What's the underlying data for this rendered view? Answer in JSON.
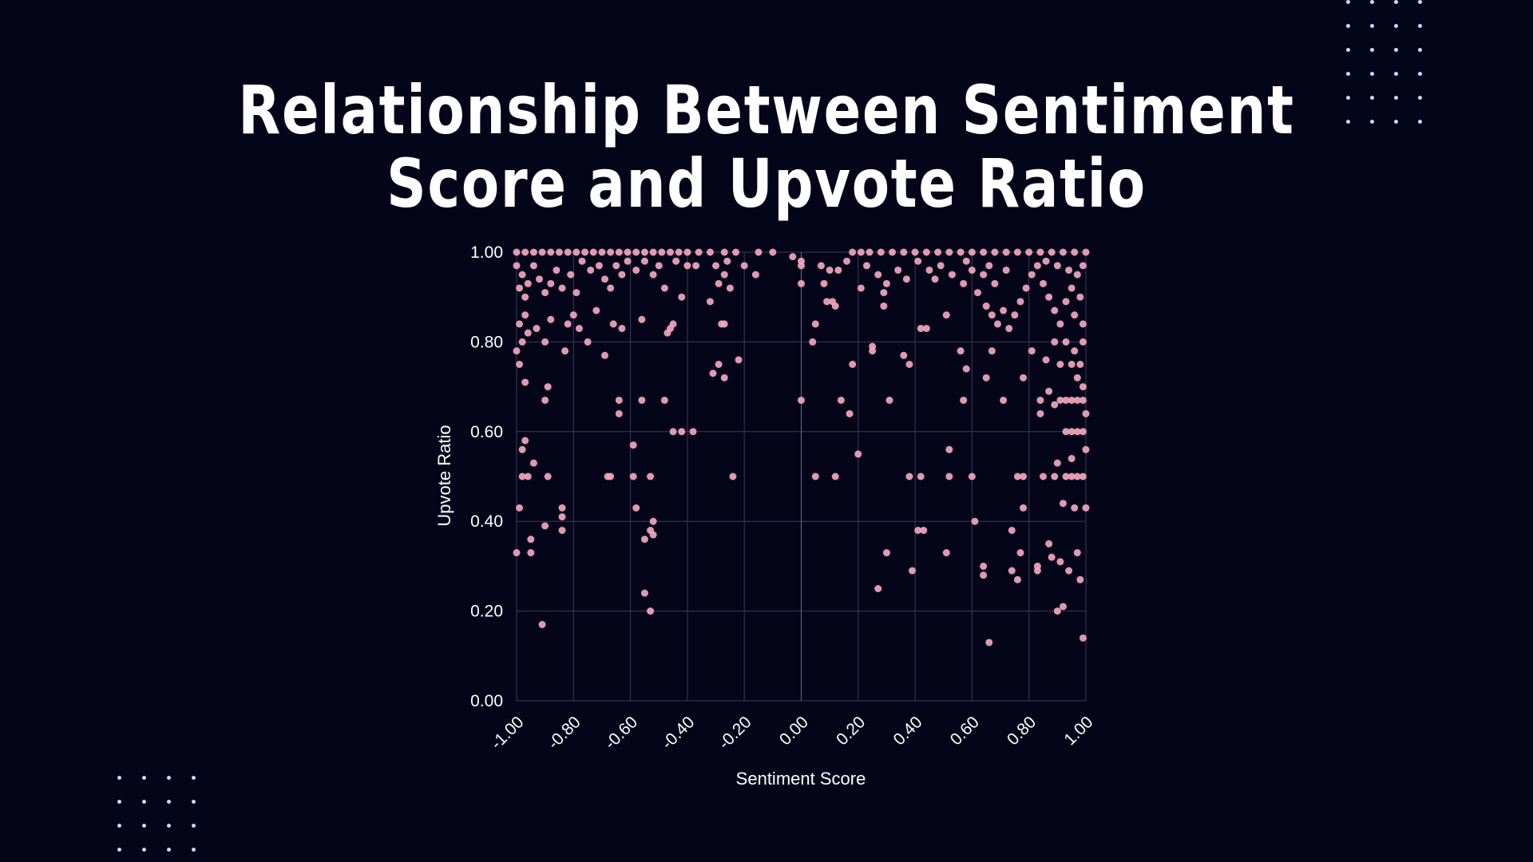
{
  "colors": {
    "background": "#05051a",
    "point": "#f2a7bd",
    "grid": "#3a3a55",
    "text": "#ffffff",
    "decor_dots": "#cfd6ff"
  },
  "chart_data": {
    "type": "scatter",
    "title": "Relationship Between Sentiment Score and Upvote Ratio",
    "title_lines": [
      "Relationship Between Sentiment",
      "Score and Upvote Ratio"
    ],
    "xlabel": "Sentiment Score",
    "ylabel": "Upvote Ratio",
    "xlim": [
      -1.0,
      1.0
    ],
    "ylim": [
      0.0,
      1.0
    ],
    "grid": true,
    "legend": "none",
    "x_ticks": [
      -1.0,
      -0.8,
      -0.6,
      -0.4,
      -0.2,
      0.0,
      0.2,
      0.4,
      0.6,
      0.8,
      1.0
    ],
    "x_tick_labels": [
      "-1.00",
      "-0.80",
      "-0.60",
      "-0.40",
      "-0.20",
      "0.00",
      "0.20",
      "0.40",
      "0.60",
      "0.80",
      "1.00"
    ],
    "y_ticks": [
      0.0,
      0.2,
      0.4,
      0.6,
      0.8,
      1.0
    ],
    "y_tick_labels": [
      "0.00",
      "0.20",
      "0.40",
      "0.60",
      "0.80",
      "1.00"
    ],
    "points": [
      {
        "x": -1.0,
        "y": 0.33
      },
      {
        "x": -0.99,
        "y": 0.43
      },
      {
        "x": -0.98,
        "y": 0.56
      },
      {
        "x": -0.97,
        "y": 0.58
      },
      {
        "x": -0.98,
        "y": 0.5
      },
      {
        "x": -0.96,
        "y": 0.5
      },
      {
        "x": -0.95,
        "y": 0.36
      },
      {
        "x": -0.95,
        "y": 0.33
      },
      {
        "x": -0.94,
        "y": 0.53
      },
      {
        "x": -0.91,
        "y": 0.17
      },
      {
        "x": -0.9,
        "y": 0.39
      },
      {
        "x": -0.89,
        "y": 0.5
      },
      {
        "x": -0.9,
        "y": 0.67
      },
      {
        "x": -0.89,
        "y": 0.7
      },
      {
        "x": -0.84,
        "y": 0.43
      },
      {
        "x": -0.84,
        "y": 0.41
      },
      {
        "x": -0.84,
        "y": 0.38
      },
      {
        "x": -0.97,
        "y": 0.71
      },
      {
        "x": -0.99,
        "y": 0.75
      },
      {
        "x": -1.0,
        "y": 0.78
      },
      {
        "x": -0.98,
        "y": 0.8
      },
      {
        "x": -0.96,
        "y": 0.82
      },
      {
        "x": -0.99,
        "y": 0.84
      },
      {
        "x": -0.97,
        "y": 0.86
      },
      {
        "x": -0.93,
        "y": 0.83
      },
      {
        "x": -0.9,
        "y": 0.8
      },
      {
        "x": -0.88,
        "y": 0.85
      },
      {
        "x": -0.83,
        "y": 0.78
      },
      {
        "x": -0.82,
        "y": 0.84
      },
      {
        "x": -0.8,
        "y": 0.86
      },
      {
        "x": -0.78,
        "y": 0.83
      },
      {
        "x": -0.75,
        "y": 0.8
      },
      {
        "x": -0.72,
        "y": 0.87
      },
      {
        "x": -0.69,
        "y": 0.77
      },
      {
        "x": -0.66,
        "y": 0.84
      },
      {
        "x": -0.63,
        "y": 0.83
      },
      {
        "x": -0.64,
        "y": 0.67
      },
      {
        "x": -0.64,
        "y": 0.64
      },
      {
        "x": -0.59,
        "y": 0.57
      },
      {
        "x": -0.59,
        "y": 0.5
      },
      {
        "x": -0.58,
        "y": 0.43
      },
      {
        "x": -0.56,
        "y": 0.67
      },
      {
        "x": -0.55,
        "y": 0.36
      },
      {
        "x": -0.55,
        "y": 0.24
      },
      {
        "x": -0.53,
        "y": 0.2
      },
      {
        "x": -0.53,
        "y": 0.5
      },
      {
        "x": -0.52,
        "y": 0.4
      },
      {
        "x": -0.52,
        "y": 0.37
      },
      {
        "x": -0.53,
        "y": 0.38
      },
      {
        "x": -0.48,
        "y": 0.67
      },
      {
        "x": -0.45,
        "y": 0.6
      },
      {
        "x": -0.42,
        "y": 0.6
      },
      {
        "x": -0.38,
        "y": 0.6
      },
      {
        "x": -0.47,
        "y": 0.82
      },
      {
        "x": -0.46,
        "y": 0.83
      },
      {
        "x": -0.45,
        "y": 0.84
      },
      {
        "x": -0.42,
        "y": 0.9
      },
      {
        "x": -0.56,
        "y": 0.85
      },
      {
        "x": -0.68,
        "y": 0.5
      },
      {
        "x": -0.67,
        "y": 0.5
      },
      {
        "x": -0.31,
        "y": 0.73
      },
      {
        "x": -0.29,
        "y": 0.75
      },
      {
        "x": -0.27,
        "y": 0.72
      },
      {
        "x": -0.22,
        "y": 0.76
      },
      {
        "x": -0.24,
        "y": 0.5
      },
      {
        "x": -0.28,
        "y": 0.84
      },
      {
        "x": -0.27,
        "y": 0.84
      },
      {
        "x": -0.32,
        "y": 0.89
      },
      {
        "x": -0.29,
        "y": 0.93
      },
      {
        "x": -0.27,
        "y": 0.95
      },
      {
        "x": -0.25,
        "y": 0.92
      },
      {
        "x": -0.2,
        "y": 0.97
      },
      {
        "x": -0.16,
        "y": 0.95
      },
      {
        "x": -0.1,
        "y": 1.0
      },
      {
        "x": -0.03,
        "y": 0.99
      },
      {
        "x": 0.0,
        "y": 0.93
      },
      {
        "x": 0.0,
        "y": 0.97
      },
      {
        "x": 0.0,
        "y": 0.98
      },
      {
        "x": 0.0,
        "y": 0.67
      },
      {
        "x": 0.04,
        "y": 0.8
      },
      {
        "x": 0.05,
        "y": 0.84
      },
      {
        "x": 0.05,
        "y": 0.5
      },
      {
        "x": 0.08,
        "y": 0.93
      },
      {
        "x": 0.09,
        "y": 0.89
      },
      {
        "x": 0.11,
        "y": 0.89
      },
      {
        "x": 0.12,
        "y": 0.88
      },
      {
        "x": 0.12,
        "y": 0.5
      },
      {
        "x": 0.14,
        "y": 0.67
      },
      {
        "x": 0.17,
        "y": 0.64
      },
      {
        "x": 0.18,
        "y": 0.75
      },
      {
        "x": 0.2,
        "y": 0.55
      },
      {
        "x": 0.21,
        "y": 0.92
      },
      {
        "x": 0.25,
        "y": 0.79
      },
      {
        "x": 0.25,
        "y": 0.78
      },
      {
        "x": 0.27,
        "y": 0.25
      },
      {
        "x": 0.29,
        "y": 0.91
      },
      {
        "x": 0.29,
        "y": 0.88
      },
      {
        "x": 0.3,
        "y": 0.33
      },
      {
        "x": 0.31,
        "y": 0.67
      },
      {
        "x": 0.36,
        "y": 0.77
      },
      {
        "x": 0.38,
        "y": 0.75
      },
      {
        "x": 0.38,
        "y": 0.5
      },
      {
        "x": 0.39,
        "y": 0.29
      },
      {
        "x": 0.41,
        "y": 0.38
      },
      {
        "x": 0.42,
        "y": 0.5
      },
      {
        "x": 0.43,
        "y": 0.38
      },
      {
        "x": 0.42,
        "y": 0.83
      },
      {
        "x": 0.44,
        "y": 0.83
      },
      {
        "x": 0.47,
        "y": 0.94
      },
      {
        "x": 0.51,
        "y": 0.33
      },
      {
        "x": 0.51,
        "y": 0.86
      },
      {
        "x": 0.52,
        "y": 0.5
      },
      {
        "x": 0.52,
        "y": 0.56
      },
      {
        "x": 0.56,
        "y": 0.78
      },
      {
        "x": 0.57,
        "y": 0.67
      },
      {
        "x": 0.58,
        "y": 0.74
      },
      {
        "x": 0.6,
        "y": 0.5
      },
      {
        "x": 0.61,
        "y": 0.4
      },
      {
        "x": 0.64,
        "y": 0.3
      },
      {
        "x": 0.64,
        "y": 0.28
      },
      {
        "x": 0.66,
        "y": 0.13
      },
      {
        "x": 0.65,
        "y": 0.72
      },
      {
        "x": 0.67,
        "y": 0.78
      },
      {
        "x": 0.71,
        "y": 0.67
      },
      {
        "x": 0.74,
        "y": 0.38
      },
      {
        "x": 0.74,
        "y": 0.29
      },
      {
        "x": 0.76,
        "y": 0.27
      },
      {
        "x": 0.77,
        "y": 0.33
      },
      {
        "x": 0.76,
        "y": 0.5
      },
      {
        "x": 0.78,
        "y": 0.5
      },
      {
        "x": 0.78,
        "y": 0.43
      },
      {
        "x": 0.78,
        "y": 0.72
      },
      {
        "x": 0.81,
        "y": 0.78
      },
      {
        "x": 0.83,
        "y": 0.3
      },
      {
        "x": 0.83,
        "y": 0.29
      },
      {
        "x": 0.85,
        "y": 0.5
      },
      {
        "x": 0.84,
        "y": 0.67
      },
      {
        "x": 0.84,
        "y": 0.64
      },
      {
        "x": 0.87,
        "y": 0.35
      },
      {
        "x": 0.88,
        "y": 0.32
      },
      {
        "x": 0.9,
        "y": 0.2
      },
      {
        "x": 0.91,
        "y": 0.31
      },
      {
        "x": 0.92,
        "y": 0.21
      },
      {
        "x": 0.92,
        "y": 0.44
      },
      {
        "x": 0.93,
        "y": 0.5
      },
      {
        "x": 0.94,
        "y": 0.29
      },
      {
        "x": 0.95,
        "y": 0.54
      },
      {
        "x": 0.96,
        "y": 0.43
      },
      {
        "x": 0.97,
        "y": 0.33
      },
      {
        "x": 0.98,
        "y": 0.27
      },
      {
        "x": 0.99,
        "y": 0.14
      },
      {
        "x": 1.0,
        "y": 0.43
      },
      {
        "x": 1.0,
        "y": 0.56
      },
      {
        "x": 1.0,
        "y": 0.64
      },
      {
        "x": 0.9,
        "y": 0.53
      },
      {
        "x": 0.89,
        "y": 0.5
      },
      {
        "x": 0.93,
        "y": 0.6
      },
      {
        "x": 0.95,
        "y": 0.6
      },
      {
        "x": 0.97,
        "y": 0.6
      },
      {
        "x": 0.99,
        "y": 0.6
      },
      {
        "x": 0.91,
        "y": 0.67
      },
      {
        "x": 0.93,
        "y": 0.67
      },
      {
        "x": 0.95,
        "y": 0.67
      },
      {
        "x": 0.97,
        "y": 0.67
      },
      {
        "x": 0.99,
        "y": 0.67
      },
      {
        "x": 0.97,
        "y": 0.5
      },
      {
        "x": 0.99,
        "y": 0.5
      },
      {
        "x": 0.95,
        "y": 0.5
      },
      {
        "x": 0.91,
        "y": 0.75
      },
      {
        "x": 0.95,
        "y": 0.75
      },
      {
        "x": 0.98,
        "y": 0.75
      },
      {
        "x": 0.97,
        "y": 0.72
      },
      {
        "x": 0.99,
        "y": 0.7
      },
      {
        "x": 0.93,
        "y": 0.8
      },
      {
        "x": 0.96,
        "y": 0.78
      },
      {
        "x": 0.99,
        "y": 0.8
      },
      {
        "x": 0.89,
        "y": 0.8
      },
      {
        "x": 0.86,
        "y": 0.76
      },
      {
        "x": 0.87,
        "y": 0.69
      },
      {
        "x": 0.89,
        "y": 0.66
      },
      {
        "x": -1.0,
        "y": 1.0
      },
      {
        "x": -0.97,
        "y": 1.0
      },
      {
        "x": -0.94,
        "y": 1.0
      },
      {
        "x": -0.91,
        "y": 1.0
      },
      {
        "x": -0.88,
        "y": 1.0
      },
      {
        "x": -0.85,
        "y": 1.0
      },
      {
        "x": -0.82,
        "y": 1.0
      },
      {
        "x": -0.79,
        "y": 1.0
      },
      {
        "x": -0.76,
        "y": 1.0
      },
      {
        "x": -0.73,
        "y": 1.0
      },
      {
        "x": -0.7,
        "y": 1.0
      },
      {
        "x": -0.67,
        "y": 1.0
      },
      {
        "x": -0.64,
        "y": 1.0
      },
      {
        "x": -0.61,
        "y": 1.0
      },
      {
        "x": -0.58,
        "y": 1.0
      },
      {
        "x": -0.55,
        "y": 1.0
      },
      {
        "x": -0.52,
        "y": 1.0
      },
      {
        "x": -0.49,
        "y": 1.0
      },
      {
        "x": -0.46,
        "y": 1.0
      },
      {
        "x": -0.43,
        "y": 1.0
      },
      {
        "x": -0.4,
        "y": 1.0
      },
      {
        "x": -0.36,
        "y": 1.0
      },
      {
        "x": -0.32,
        "y": 1.0
      },
      {
        "x": -0.27,
        "y": 1.0
      },
      {
        "x": -0.23,
        "y": 1.0
      },
      {
        "x": -0.15,
        "y": 1.0
      },
      {
        "x": 0.18,
        "y": 1.0
      },
      {
        "x": 0.21,
        "y": 1.0
      },
      {
        "x": 0.24,
        "y": 1.0
      },
      {
        "x": 0.28,
        "y": 1.0
      },
      {
        "x": 0.32,
        "y": 1.0
      },
      {
        "x": 0.36,
        "y": 1.0
      },
      {
        "x": 0.4,
        "y": 1.0
      },
      {
        "x": 0.44,
        "y": 1.0
      },
      {
        "x": 0.48,
        "y": 1.0
      },
      {
        "x": 0.52,
        "y": 1.0
      },
      {
        "x": 0.56,
        "y": 1.0
      },
      {
        "x": 0.6,
        "y": 1.0
      },
      {
        "x": 0.64,
        "y": 1.0
      },
      {
        "x": 0.68,
        "y": 1.0
      },
      {
        "x": 0.72,
        "y": 1.0
      },
      {
        "x": 0.76,
        "y": 1.0
      },
      {
        "x": 0.8,
        "y": 1.0
      },
      {
        "x": 0.84,
        "y": 1.0
      },
      {
        "x": 0.88,
        "y": 1.0
      },
      {
        "x": 0.92,
        "y": 1.0
      },
      {
        "x": 0.96,
        "y": 1.0
      },
      {
        "x": 1.0,
        "y": 1.0
      },
      {
        "x": -1.0,
        "y": 0.97
      },
      {
        "x": -0.98,
        "y": 0.95
      },
      {
        "x": -0.96,
        "y": 0.93
      },
      {
        "x": -0.99,
        "y": 0.92
      },
      {
        "x": -0.97,
        "y": 0.9
      },
      {
        "x": -0.94,
        "y": 0.97
      },
      {
        "x": -0.92,
        "y": 0.94
      },
      {
        "x": -0.9,
        "y": 0.91
      },
      {
        "x": -0.88,
        "y": 0.93
      },
      {
        "x": -0.86,
        "y": 0.96
      },
      {
        "x": -0.84,
        "y": 0.92
      },
      {
        "x": -0.81,
        "y": 0.95
      },
      {
        "x": -0.79,
        "y": 0.91
      },
      {
        "x": -0.77,
        "y": 0.98
      },
      {
        "x": -0.74,
        "y": 0.96
      },
      {
        "x": -0.71,
        "y": 0.97
      },
      {
        "x": -0.69,
        "y": 0.94
      },
      {
        "x": -0.67,
        "y": 0.92
      },
      {
        "x": -0.65,
        "y": 0.97
      },
      {
        "x": -0.63,
        "y": 0.95
      },
      {
        "x": -0.61,
        "y": 0.98
      },
      {
        "x": -0.58,
        "y": 0.96
      },
      {
        "x": -0.55,
        "y": 0.98
      },
      {
        "x": -0.52,
        "y": 0.95
      },
      {
        "x": -0.5,
        "y": 0.97
      },
      {
        "x": -0.48,
        "y": 0.92
      },
      {
        "x": -0.44,
        "y": 0.98
      },
      {
        "x": -0.4,
        "y": 0.97
      },
      {
        "x": -0.37,
        "y": 0.97
      },
      {
        "x": -0.3,
        "y": 0.97
      },
      {
        "x": -0.26,
        "y": 0.98
      },
      {
        "x": 0.07,
        "y": 0.97
      },
      {
        "x": 0.1,
        "y": 0.96
      },
      {
        "x": 0.13,
        "y": 0.96
      },
      {
        "x": 0.16,
        "y": 0.98
      },
      {
        "x": 0.23,
        "y": 0.97
      },
      {
        "x": 0.27,
        "y": 0.95
      },
      {
        "x": 0.3,
        "y": 0.93
      },
      {
        "x": 0.34,
        "y": 0.96
      },
      {
        "x": 0.37,
        "y": 0.94
      },
      {
        "x": 0.41,
        "y": 0.98
      },
      {
        "x": 0.45,
        "y": 0.96
      },
      {
        "x": 0.49,
        "y": 0.97
      },
      {
        "x": 0.53,
        "y": 0.95
      },
      {
        "x": 0.57,
        "y": 0.93
      },
      {
        "x": 0.6,
        "y": 0.96
      },
      {
        "x": 0.62,
        "y": 0.91
      },
      {
        "x": 0.65,
        "y": 0.88
      },
      {
        "x": 0.67,
        "y": 0.86
      },
      {
        "x": 0.69,
        "y": 0.84
      },
      {
        "x": 0.71,
        "y": 0.87
      },
      {
        "x": 0.73,
        "y": 0.83
      },
      {
        "x": 0.75,
        "y": 0.86
      },
      {
        "x": 0.77,
        "y": 0.89
      },
      {
        "x": 0.79,
        "y": 0.92
      },
      {
        "x": 0.81,
        "y": 0.95
      },
      {
        "x": 0.83,
        "y": 0.97
      },
      {
        "x": 0.85,
        "y": 0.93
      },
      {
        "x": 0.87,
        "y": 0.9
      },
      {
        "x": 0.89,
        "y": 0.87
      },
      {
        "x": 0.91,
        "y": 0.84
      },
      {
        "x": 0.93,
        "y": 0.89
      },
      {
        "x": 0.95,
        "y": 0.92
      },
      {
        "x": 0.97,
        "y": 0.95
      },
      {
        "x": 0.99,
        "y": 0.97
      },
      {
        "x": 0.98,
        "y": 0.9
      },
      {
        "x": 0.96,
        "y": 0.86
      },
      {
        "x": 0.99,
        "y": 0.84
      },
      {
        "x": 0.94,
        "y": 0.96
      },
      {
        "x": 0.9,
        "y": 0.97
      },
      {
        "x": 0.86,
        "y": 0.98
      },
      {
        "x": 0.72,
        "y": 0.96
      },
      {
        "x": 0.68,
        "y": 0.93
      },
      {
        "x": 0.64,
        "y": 0.95
      },
      {
        "x": 0.58,
        "y": 0.98
      },
      {
        "x": 0.66,
        "y": 0.97
      }
    ]
  }
}
